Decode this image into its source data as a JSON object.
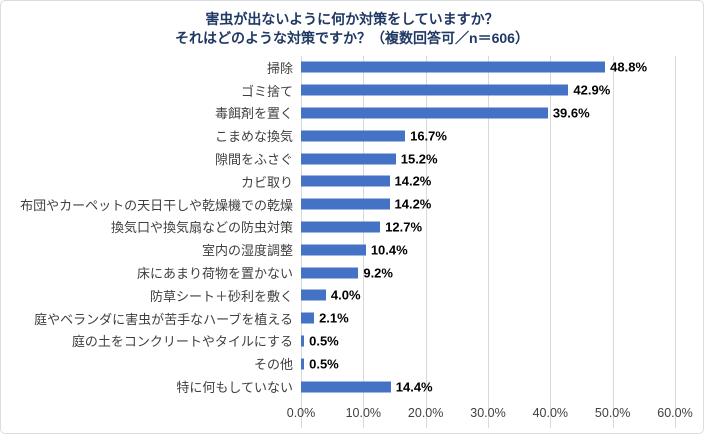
{
  "title": {
    "line1": "害虫が出ないように何か対策をしていますか？",
    "line2": "それはどのような対策ですか？（複数回答可／n＝606）"
  },
  "colors": {
    "bar": "#4472c4",
    "title_text": "#1f3864",
    "gridline": "#d9d9d9",
    "value_label": "#000000",
    "category_label": "#3f3f3f"
  },
  "chart_data": {
    "type": "bar",
    "orientation": "horizontal",
    "title": "害虫が出ないように何か対策をしていますか？ それはどのような対策ですか？（複数回答可／n＝606）",
    "categories": [
      "掃除",
      "ゴミ捨て",
      "毒餌剤を置く",
      "こまめな換気",
      "隙間をふさぐ",
      "カビ取り",
      "布団やカーペットの天日干しや乾燥機での乾燥",
      "換気口や換気扇などの防虫対策",
      "室内の湿度調整",
      "床にあまり荷物を置かない",
      "防草シート＋砂利を敷く",
      "庭やベランダに害虫が苦手なハーブを植える",
      "庭の土をコンクリートやタイルにする",
      "その他",
      "特に何もしていない"
    ],
    "values": [
      48.8,
      42.9,
      39.6,
      16.7,
      15.2,
      14.2,
      14.2,
      12.7,
      10.4,
      9.2,
      4.0,
      2.1,
      0.5,
      0.5,
      14.4
    ],
    "value_suffix": "%",
    "xlabel": "",
    "ylabel": "",
    "xlim": [
      0,
      60
    ],
    "x_ticks": [
      "0.0%",
      "10.0%",
      "20.0%",
      "30.0%",
      "40.0%",
      "50.0%",
      "60.0%"
    ],
    "grid": true,
    "legend": false
  }
}
